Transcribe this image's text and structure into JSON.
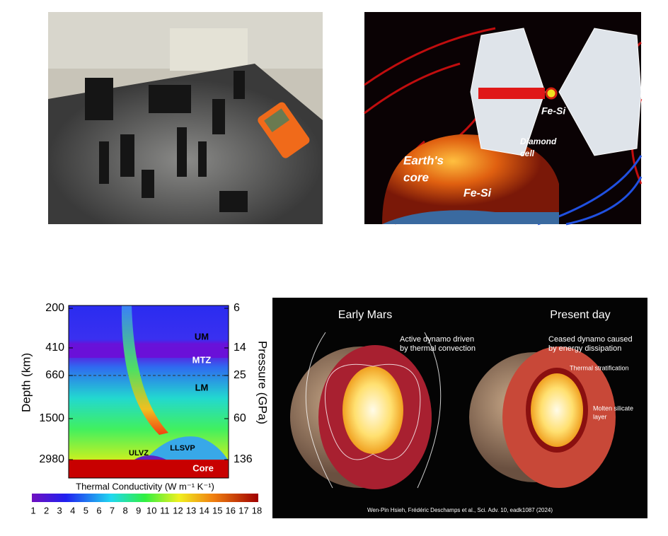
{
  "diamond_panel": {
    "sample_label": "Fe-Si",
    "cell_label": [
      "Diamond",
      "cell"
    ],
    "core_label": [
      "Earth's",
      "core"
    ],
    "core_sample_label": "Fe-Si"
  },
  "conductivity_panel": {
    "left_axis_title": "Depth (km)",
    "right_axis_title": "Pressure (GPa)",
    "depth_labels": [
      "200",
      "410",
      "660",
      "1500",
      "2980"
    ],
    "pressure_labels": [
      "6",
      "14",
      "25",
      "60",
      "136"
    ],
    "region_labels": [
      "UM",
      "MTZ",
      "LM",
      "ULVZ",
      "LLSVP",
      "Core"
    ],
    "colorbar_title": "Thermal Conductivity (W m⁻¹ K⁻¹)",
    "colorbar_labels": [
      "1",
      "2",
      "3",
      "4",
      "5",
      "6",
      "7",
      "8",
      "9",
      "10",
      "11",
      "12",
      "13",
      "14",
      "15",
      "16",
      "17",
      "18"
    ]
  },
  "mars_panel": {
    "left_title": "Early Mars",
    "right_title": "Present day",
    "left_caption": [
      "Active dynamo driven",
      "by thermal convection"
    ],
    "right_caption": [
      "Ceased dynamo caused",
      "by energy dissipation"
    ],
    "stratification_label": "Thermal stratification",
    "silicate_label": [
      "Molten silicate",
      "layer"
    ],
    "citation": "Wen-Pin Hsieh, Frédéric Deschamps et al., Sci. Adv. 10, eadk1087 (2024)"
  }
}
